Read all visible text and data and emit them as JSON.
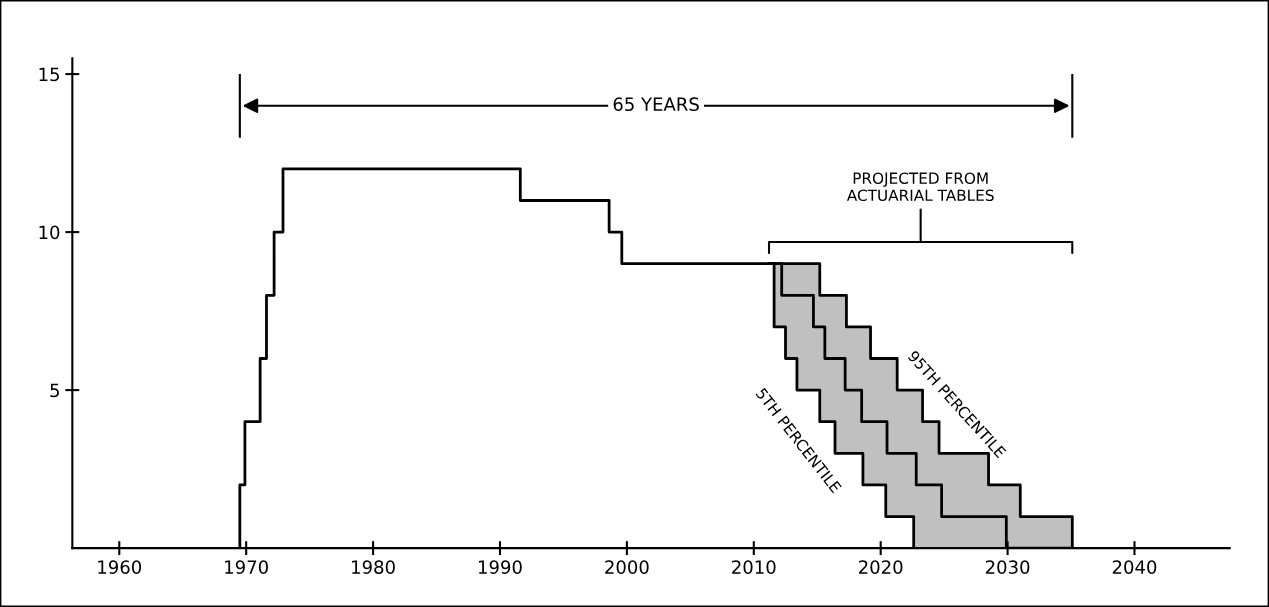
{
  "chart_data": {
    "type": "step",
    "xlim": [
      1956.3,
      2047.5
    ],
    "ylim": [
      0,
      15.5
    ],
    "xticks": [
      1960,
      1970,
      1980,
      1990,
      2000,
      2010,
      2020,
      2030,
      2040
    ],
    "yticks": [
      5,
      10,
      15
    ],
    "grid": false,
    "marker": "none",
    "line_style": "solid",
    "series": [
      {
        "color": "#000000",
        "x": [
          1969.5,
          1969.5,
          1969.9,
          1971.1,
          1971.6,
          1972.2,
          1972.9,
          1991.6,
          1998.6,
          1999.6,
          2011.2,
          2011.6,
          2012.2,
          2012.5,
          2013.4,
          2014.7,
          2015.2,
          2015.6,
          2016.4,
          2017.2,
          2017.3,
          2018.5,
          2018.6,
          2019.2,
          2020.4,
          2020.5,
          2021.3,
          2022.6,
          2022.8,
          2023.3,
          2024.6,
          2024.8,
          2028.5,
          2029.9,
          2031.0,
          2035.1
        ],
        "values": [
          0,
          2,
          4,
          6,
          8,
          10,
          12,
          11,
          10,
          9,
          9,
          9,
          8,
          8,
          8,
          7,
          7,
          6,
          6,
          5,
          5,
          4,
          4,
          4,
          4,
          3,
          3,
          3,
          2,
          2,
          2,
          1,
          1,
          0,
          0,
          0
        ],
        "lower": [
          null,
          null,
          null,
          null,
          null,
          null,
          null,
          null,
          null,
          null,
          9,
          7,
          7,
          6,
          5,
          5,
          4,
          4,
          3,
          3,
          3,
          3,
          2,
          2,
          1,
          1,
          1,
          0,
          0,
          0,
          0,
          0,
          0,
          0,
          0,
          0
        ],
        "upper": [
          null,
          null,
          null,
          null,
          null,
          null,
          null,
          null,
          null,
          null,
          9,
          9,
          9,
          9,
          9,
          9,
          8,
          8,
          8,
          8,
          7,
          7,
          7,
          6,
          6,
          6,
          5,
          5,
          5,
          4,
          3,
          3,
          2,
          2,
          1,
          0
        ]
      },
      {
        "name": "5TH PERCENTILE",
        "color": "#000000",
        "x": [
          2011.2,
          2011.6,
          2012.5,
          2013.4,
          2015.2,
          2016.4,
          2018.6,
          2020.4,
          2022.6
        ],
        "values": [
          9,
          7,
          6,
          5,
          4,
          3,
          2,
          1,
          0
        ]
      },
      {
        "name": "95TH PERCENTILE",
        "color": "#000000",
        "x": [
          2011.2,
          2015.2,
          2017.3,
          2019.2,
          2021.3,
          2023.3,
          2024.6,
          2028.5,
          2031.0,
          2035.1
        ],
        "values": [
          9,
          8,
          7,
          6,
          5,
          4,
          3,
          2,
          1,
          0
        ]
      }
    ],
    "annotations": [
      "65 YEARS",
      "PROJECTED FROM\nACTUARIAL TABLES"
    ]
  }
}
